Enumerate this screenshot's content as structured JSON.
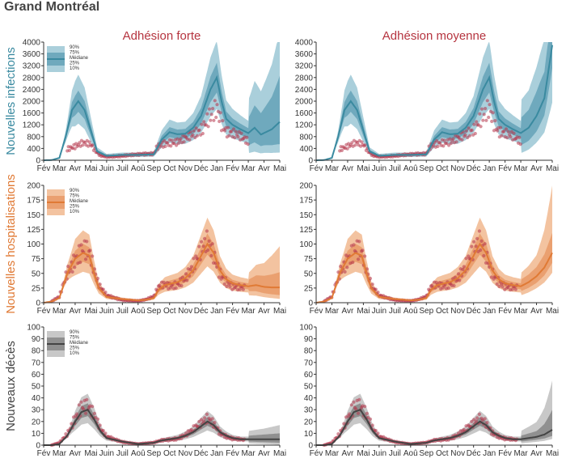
{
  "page": {
    "title": "Grand Montréal"
  },
  "chart_data": {
    "type": "area",
    "columns": [
      "Adhésion forte",
      "Adhésion moyenne"
    ],
    "months": [
      "Fév",
      "Mar",
      "Avr",
      "Mai",
      "Juin",
      "Juil",
      "Aoû",
      "Sep",
      "Oct",
      "Nov",
      "Déc",
      "Jan",
      "Fév",
      "Mar",
      "Avr",
      "Mai"
    ],
    "legend": [
      "90%",
      "75%",
      "Médiane",
      "25%",
      "10%"
    ],
    "rows": [
      {
        "label": "Nouvelles infections",
        "color": "#3a8aa0",
        "light": "#aacfdb",
        "mid": "#6fa9bd",
        "ylim": [
          0,
          4000
        ],
        "yticks": [
          0,
          400,
          800,
          1200,
          1600,
          2000,
          2400,
          2800,
          3200,
          3600,
          4000
        ],
        "observed_start": 1.5,
        "observed_end": 13.0,
        "median_knots": [
          [
            0,
            0
          ],
          [
            0.5,
            5
          ],
          [
            1,
            80
          ],
          [
            1.4,
            800
          ],
          [
            1.8,
            1700
          ],
          [
            2.2,
            2000
          ],
          [
            2.6,
            1700
          ],
          [
            3.0,
            1000
          ],
          [
            3.4,
            300
          ],
          [
            4,
            150
          ],
          [
            5,
            180
          ],
          [
            6,
            180
          ],
          [
            7,
            200
          ],
          [
            7.5,
            700
          ],
          [
            8,
            950
          ],
          [
            8.5,
            880
          ],
          [
            9,
            900
          ],
          [
            9.5,
            1100
          ],
          [
            10,
            1500
          ],
          [
            10.6,
            2400
          ],
          [
            11,
            2800
          ],
          [
            11.3,
            2000
          ],
          [
            11.6,
            1400
          ],
          [
            12,
            1200
          ],
          [
            12.5,
            1050
          ],
          [
            13,
            920
          ]
        ],
        "obs_knots": [
          [
            1.5,
            400
          ],
          [
            2,
            460
          ],
          [
            2.5,
            540
          ],
          [
            3,
            500
          ],
          [
            3.3,
            300
          ],
          [
            3.6,
            170
          ],
          [
            4,
            130
          ],
          [
            5,
            150
          ],
          [
            6,
            180
          ],
          [
            7,
            230
          ],
          [
            7.2,
            480
          ],
          [
            7.5,
            600
          ],
          [
            8,
            620
          ],
          [
            8.5,
            600
          ],
          [
            9,
            680
          ],
          [
            9.5,
            820
          ],
          [
            10,
            1000
          ],
          [
            10.5,
            1600
          ],
          [
            11,
            1950
          ],
          [
            11.3,
            1300
          ],
          [
            11.6,
            950
          ],
          [
            12,
            850
          ],
          [
            12.5,
            750
          ],
          [
            13,
            600
          ]
        ],
        "scenarios": [
          {
            "name": "Adhésion forte",
            "median": [
              [
                13,
                920
              ],
              [
                13.4,
                1100
              ],
              [
                13.8,
                870
              ],
              [
                14.5,
                1050
              ],
              [
                15,
                1300
              ]
            ],
            "bands": [
              [
                13,
                0.26,
                0.55,
                1.55,
                2.2
              ],
              [
                14,
                0.27,
                0.55,
                1.9,
                2.8
              ],
              [
                15,
                0.2,
                0.42,
                2.2,
                3.4
              ]
            ]
          },
          {
            "name": "Adhésion moyenne",
            "median": [
              [
                13,
                920
              ],
              [
                13.5,
                1100
              ],
              [
                14,
                1500
              ],
              [
                14.5,
                2100
              ],
              [
                15,
                3900
              ]
            ],
            "bands": [
              [
                13,
                0.26,
                0.55,
                1.55,
                2.2
              ],
              [
                14,
                0.4,
                0.65,
                1.55,
                2.1
              ],
              [
                15,
                0.5,
                0.8,
                1.3,
                1.8
              ]
            ]
          }
        ]
      },
      {
        "label": "Nouvelles hospitalisations",
        "color": "#e07a35",
        "light": "#f3c3a0",
        "mid": "#eaa070",
        "ylim": [
          0,
          200
        ],
        "yticks": [
          0,
          25,
          50,
          75,
          100,
          125,
          150,
          175,
          200
        ],
        "observed_start": 0.5,
        "observed_end": 12.8,
        "median_knots": [
          [
            0,
            0
          ],
          [
            0.5,
            2
          ],
          [
            1,
            8
          ],
          [
            1.5,
            50
          ],
          [
            2,
            75
          ],
          [
            2.5,
            85
          ],
          [
            2.9,
            80
          ],
          [
            3.2,
            50
          ],
          [
            3.5,
            25
          ],
          [
            4,
            10
          ],
          [
            5,
            6
          ],
          [
            6,
            4
          ],
          [
            6.5,
            5
          ],
          [
            7,
            8
          ],
          [
            7.3,
            22
          ],
          [
            7.7,
            30
          ],
          [
            8,
            32
          ],
          [
            8.5,
            35
          ],
          [
            9,
            42
          ],
          [
            9.5,
            55
          ],
          [
            10,
            80
          ],
          [
            10.4,
            100
          ],
          [
            10.8,
            85
          ],
          [
            11.2,
            55
          ],
          [
            11.6,
            40
          ],
          [
            12,
            33
          ],
          [
            12.5,
            30
          ],
          [
            13,
            28
          ]
        ],
        "obs_knots": [
          [
            0.5,
            2
          ],
          [
            1,
            10
          ],
          [
            1.5,
            55
          ],
          [
            2,
            80
          ],
          [
            2.5,
            98
          ],
          [
            2.9,
            85
          ],
          [
            3.2,
            52
          ],
          [
            3.5,
            28
          ],
          [
            4,
            12
          ],
          [
            5,
            5
          ],
          [
            6,
            3
          ],
          [
            6.5,
            5
          ],
          [
            7,
            10
          ],
          [
            7.3,
            26
          ],
          [
            7.7,
            32
          ],
          [
            8,
            30
          ],
          [
            8.5,
            34
          ],
          [
            9,
            44
          ],
          [
            9.5,
            60
          ],
          [
            10,
            82
          ],
          [
            10.4,
            98
          ],
          [
            10.8,
            80
          ],
          [
            11.2,
            52
          ],
          [
            11.6,
            38
          ],
          [
            12,
            30
          ],
          [
            12.5,
            26
          ],
          [
            12.8,
            24
          ]
        ],
        "scenarios": [
          {
            "name": "Adhésion forte",
            "median": [
              [
                13,
                28
              ],
              [
                13.5,
                30
              ],
              [
                14,
                27
              ],
              [
                14.5,
                26
              ],
              [
                15,
                26
              ]
            ],
            "bands": [
              [
                13,
                0.45,
                0.7,
                1.4,
                1.8
              ],
              [
                14,
                0.35,
                0.6,
                1.7,
                2.5
              ],
              [
                15,
                0.25,
                0.5,
                2.0,
                3.7
              ]
            ]
          },
          {
            "name": "Adhésion moyenne",
            "median": [
              [
                13,
                28
              ],
              [
                13.5,
                35
              ],
              [
                14,
                45
              ],
              [
                14.5,
                60
              ],
              [
                15,
                85
              ]
            ],
            "bands": [
              [
                13,
                0.45,
                0.7,
                1.4,
                1.8
              ],
              [
                14,
                0.55,
                0.75,
                1.35,
                1.8
              ],
              [
                15,
                0.6,
                0.8,
                1.4,
                2.35
              ]
            ]
          }
        ]
      },
      {
        "label": "Nouveaux décès",
        "color": "#444444",
        "light": "#c8c8c8",
        "mid": "#909090",
        "ylim": [
          0,
          100
        ],
        "yticks": [
          0,
          10,
          20,
          30,
          40,
          50,
          60,
          70,
          80,
          90,
          100
        ],
        "observed_start": 0.5,
        "observed_end": 12.8,
        "median_knots": [
          [
            0,
            0
          ],
          [
            0.5,
            0
          ],
          [
            1,
            1
          ],
          [
            1.5,
            8
          ],
          [
            2,
            20
          ],
          [
            2.4,
            28
          ],
          [
            2.8,
            30
          ],
          [
            3.2,
            22
          ],
          [
            3.6,
            12
          ],
          [
            4,
            6
          ],
          [
            5,
            3
          ],
          [
            6,
            1
          ],
          [
            7,
            2
          ],
          [
            7.5,
            4
          ],
          [
            8,
            5
          ],
          [
            8.5,
            6
          ],
          [
            9,
            8
          ],
          [
            9.5,
            11
          ],
          [
            10,
            16
          ],
          [
            10.4,
            20
          ],
          [
            10.8,
            17
          ],
          [
            11.2,
            11
          ],
          [
            11.6,
            8
          ],
          [
            12,
            6
          ],
          [
            12.5,
            5
          ],
          [
            13,
            5
          ]
        ],
        "obs_knots": [
          [
            0.5,
            0
          ],
          [
            1,
            2
          ],
          [
            1.5,
            10
          ],
          [
            2,
            25
          ],
          [
            2.4,
            35
          ],
          [
            2.8,
            33
          ],
          [
            3.2,
            24
          ],
          [
            3.6,
            13
          ],
          [
            4,
            7
          ],
          [
            5,
            3
          ],
          [
            6,
            1
          ],
          [
            7,
            2
          ],
          [
            7.5,
            4
          ],
          [
            8,
            5
          ],
          [
            8.5,
            6
          ],
          [
            9,
            9
          ],
          [
            9.5,
            13
          ],
          [
            10,
            17
          ],
          [
            10.4,
            21
          ],
          [
            10.8,
            18
          ],
          [
            11.2,
            11
          ],
          [
            11.6,
            8
          ],
          [
            12,
            6
          ],
          [
            12.5,
            5
          ],
          [
            12.8,
            4
          ]
        ],
        "scenarios": [
          {
            "name": "Adhésion forte",
            "median": [
              [
                13,
                5
              ],
              [
                13.5,
                5
              ],
              [
                14,
                5
              ],
              [
                14.5,
                5
              ],
              [
                15,
                5
              ]
            ],
            "bands": [
              [
                13,
                0.3,
                0.6,
                1.6,
                2.4
              ],
              [
                14,
                0.2,
                0.5,
                1.8,
                2.8
              ],
              [
                15,
                0.1,
                0.4,
                2.0,
                3.4
              ]
            ]
          },
          {
            "name": "Adhésion moyenne",
            "median": [
              [
                13,
                5
              ],
              [
                13.5,
                6
              ],
              [
                14,
                7
              ],
              [
                14.5,
                9
              ],
              [
                15,
                13
              ]
            ],
            "bands": [
              [
                13,
                0.3,
                0.6,
                1.6,
                2.4
              ],
              [
                14,
                0.4,
                0.65,
                1.7,
                2.8
              ],
              [
                15,
                0.4,
                0.6,
                2.3,
                4.2
              ]
            ]
          }
        ]
      }
    ]
  }
}
